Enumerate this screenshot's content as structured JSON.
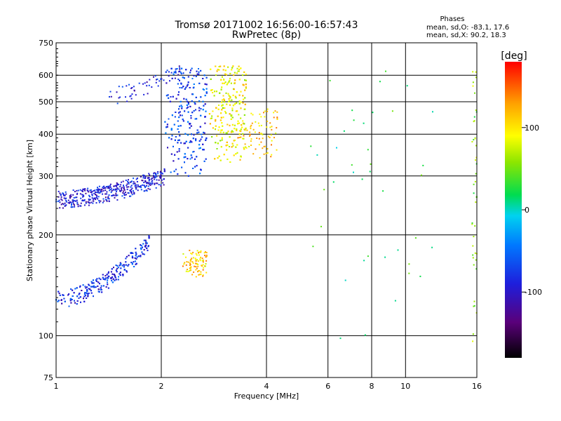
{
  "chart_data": {
    "type": "scatter",
    "title": "Tromsø 20171002 16:56:00-16:57:43",
    "subtitle": "RwPretec (8p)",
    "legend_title": "Phases",
    "legend_lines": [
      "mean, sd,O: -83.1, 17.6",
      "mean, sd,X:  90.2, 18.3"
    ],
    "xlabel": "Frequency [MHz]",
    "ylabel": "Stationary phase Virtual Height [km]",
    "xscale": "log",
    "yscale": "log",
    "xlim": [
      1,
      16
    ],
    "ylim": [
      75,
      750
    ],
    "x_ticks": [
      1,
      2,
      4,
      6,
      8,
      10,
      16
    ],
    "x_tick_labels": [
      "1",
      "2",
      "4",
      "6",
      "8",
      "10",
      "16"
    ],
    "y_ticks": [
      75,
      100,
      200,
      300,
      400,
      500,
      600,
      750
    ],
    "y_tick_labels": [
      "75",
      "100",
      "200",
      "300",
      "400",
      "500",
      "600",
      "750"
    ],
    "colorbar": {
      "label": "[deg]",
      "range": [
        -180,
        180
      ],
      "ticks": [
        100,
        0,
        -100
      ],
      "tick_labels": [
        "100",
        "0",
        "-100"
      ]
    },
    "grid": true,
    "clusters": [
      {
        "name": "F-layer O-mode trace",
        "f": [
          1.0,
          2.05
        ],
        "h": [
          255,
          300
        ],
        "phase": -95,
        "n": 420,
        "shape": "rising"
      },
      {
        "name": "F-layer steep trace",
        "f": [
          2.05,
          2.7
        ],
        "h": [
          300,
          630
        ],
        "phase": -75,
        "n": 650,
        "shape": "box"
      },
      {
        "name": "F-layer X-mode trace",
        "f": [
          2.75,
          3.5
        ],
        "h": [
          330,
          640
        ],
        "phase": 90,
        "n": 650,
        "shape": "box"
      },
      {
        "name": "F-layer X-mode tail",
        "f": [
          3.3,
          4.3
        ],
        "h": [
          340,
          480
        ],
        "phase": 110,
        "n": 80,
        "shape": "box"
      },
      {
        "name": "Upper O-mode streak",
        "f": [
          1.4,
          2.3
        ],
        "h": [
          520,
          620
        ],
        "phase": -90,
        "n": 60,
        "shape": "rising"
      },
      {
        "name": "E-layer O-mode trace",
        "f": [
          1.0,
          1.85
        ],
        "h": [
          128,
          190
        ],
        "phase": -85,
        "n": 520,
        "shape": "rising"
      },
      {
        "name": "E-layer X-mode trace",
        "f": [
          2.3,
          2.7
        ],
        "h": [
          150,
          180
        ],
        "phase": 110,
        "n": 90,
        "shape": "box"
      },
      {
        "name": "Sparse echoes near 16 MHz",
        "f": [
          15.5,
          16.0
        ],
        "h": [
          90,
          620
        ],
        "phase": 60,
        "n": 45,
        "shape": "box"
      },
      {
        "name": "Sparse echoes 5-12 MHz",
        "f": [
          5.0,
          12.0
        ],
        "h": [
          95,
          620
        ],
        "phase": 20,
        "n": 40,
        "shape": "box"
      }
    ]
  }
}
